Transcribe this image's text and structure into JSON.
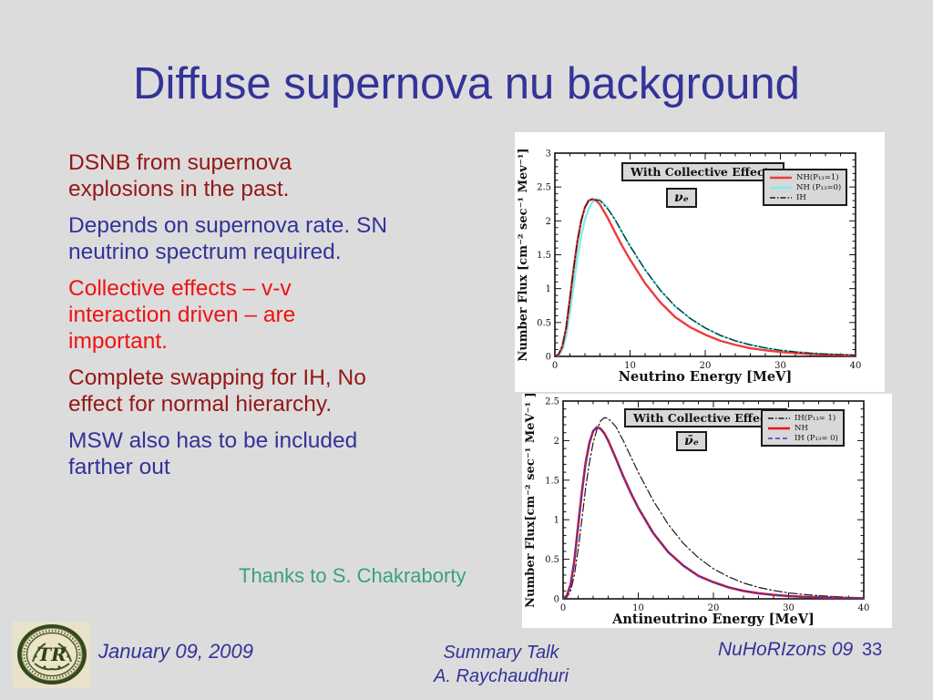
{
  "slide": {
    "title": "Diffuse supernova nu background",
    "background_color": "#dcdcdc",
    "title_color": "#333399"
  },
  "bullets": [
    {
      "text": "DSNB from  supernova\nexplosions in the past.",
      "color": "#951717"
    },
    {
      "text": "Depends on supernova rate. SN\nneutrino spectrum required.",
      "color": "#333399"
    },
    {
      "text": "Collective effects – v-v\ninteraction driven – are\nimportant.",
      "color": "#ee1313"
    },
    {
      "text": "Complete swapping for IH, No\neffect for normal hierarchy.",
      "color": "#951717"
    },
    {
      "text": "MSW also has to be included\nfarther out",
      "color": "#333399"
    }
  ],
  "credit": {
    "text": "Thanks to S. Chakraborty",
    "color": "#3aa376"
  },
  "footer": {
    "date": "January 09, 2009",
    "talk_line1": "Summary Talk",
    "talk_line2": "A. Raychaudhuri",
    "conference": "NuHoRIzons 09",
    "page_number": "33",
    "text_color": "#333399",
    "logo": {
      "monogram": "TR",
      "ring_color": "#35491d",
      "inner_color": "#ece4c6",
      "bg_color": "#e9e2cb"
    }
  },
  "chart_data": [
    {
      "type": "line",
      "title_box": "With Collective Effects",
      "particle_label": "νₑ",
      "xlabel": "Neutrino Energy [MeV]",
      "ylabel": "Number Flux [cm⁻² sec⁻¹ Mev⁻¹]",
      "xlim": [
        0,
        40
      ],
      "ylim": [
        0,
        3
      ],
      "xticks": [
        0,
        10,
        20,
        30,
        40
      ],
      "yticks": [
        0,
        0.5,
        1,
        1.5,
        2,
        2.5,
        3
      ],
      "ytick_labels": [
        "0",
        "0.5",
        "1",
        "1.5",
        "2",
        "2.5",
        "3"
      ],
      "legend_position": "top-right",
      "grid": false,
      "x": [
        0,
        0.5,
        1,
        1.5,
        2,
        2.5,
        3,
        3.5,
        4,
        4.5,
        5,
        5.5,
        6,
        7,
        8,
        9,
        10,
        12,
        14,
        16,
        18,
        20,
        22,
        24,
        26,
        28,
        30,
        32,
        34,
        36,
        38,
        40
      ],
      "series": [
        {
          "name": "NH(P₁₃=1)",
          "color": "#ee3b3b",
          "style": "solid",
          "width": 2.4,
          "y": [
            0,
            0.03,
            0.15,
            0.42,
            0.85,
            1.3,
            1.7,
            2.0,
            2.2,
            2.3,
            2.32,
            2.3,
            2.24,
            2.05,
            1.83,
            1.62,
            1.43,
            1.08,
            0.8,
            0.58,
            0.43,
            0.32,
            0.23,
            0.17,
            0.12,
            0.09,
            0.065,
            0.048,
            0.035,
            0.025,
            0.018,
            0.012
          ]
        },
        {
          "name": "NH (P₁₃=0)",
          "color": "#7deeee",
          "style": "solid",
          "width": 2.4,
          "y": [
            0,
            0.02,
            0.1,
            0.3,
            0.65,
            1.05,
            1.45,
            1.78,
            2.02,
            2.18,
            2.28,
            2.32,
            2.31,
            2.2,
            2.02,
            1.82,
            1.63,
            1.28,
            0.98,
            0.74,
            0.56,
            0.42,
            0.31,
            0.23,
            0.17,
            0.125,
            0.09,
            0.066,
            0.048,
            0.035,
            0.025,
            0.018
          ]
        },
        {
          "name": "IH",
          "color": "#1a1a1a",
          "style": "dashdot",
          "width": 1.2,
          "y": [
            0,
            0.03,
            0.15,
            0.42,
            0.85,
            1.3,
            1.7,
            2.0,
            2.2,
            2.3,
            2.32,
            2.31,
            2.3,
            2.18,
            2.02,
            1.82,
            1.63,
            1.28,
            0.98,
            0.74,
            0.56,
            0.42,
            0.31,
            0.23,
            0.17,
            0.125,
            0.09,
            0.066,
            0.048,
            0.035,
            0.025,
            0.018
          ]
        }
      ],
      "draw_order": [
        1,
        0,
        2
      ]
    },
    {
      "type": "line",
      "title_box": "With Collective Effects",
      "particle_label": "ν̄ₑ",
      "xlabel": "Antineutrino Energy [MeV]",
      "ylabel": "Number Flux[cm⁻² sec⁻¹ MeV⁻¹ ]",
      "xlim": [
        0,
        40
      ],
      "ylim": [
        0,
        2.5
      ],
      "xticks": [
        0,
        10,
        20,
        30,
        40
      ],
      "yticks": [
        0,
        0.5,
        1,
        1.5,
        2,
        2.5
      ],
      "ytick_labels": [
        "0",
        "0.5",
        "1",
        "1.5",
        "2",
        "2.5"
      ],
      "legend_position": "top-right",
      "grid": false,
      "x": [
        0,
        0.5,
        1,
        1.5,
        2,
        2.5,
        3,
        3.5,
        4,
        4.5,
        5,
        5.5,
        6,
        7,
        8,
        9,
        10,
        12,
        14,
        16,
        18,
        20,
        22,
        24,
        26,
        28,
        30,
        32,
        34,
        36,
        38,
        40
      ],
      "series": [
        {
          "name": "IH(P₁₃= 1)",
          "color": "#1a1a1a",
          "style": "dashdot",
          "width": 1.2,
          "y": [
            0,
            0.02,
            0.1,
            0.3,
            0.62,
            1.0,
            1.4,
            1.72,
            1.97,
            2.14,
            2.25,
            2.29,
            2.28,
            2.18,
            2.0,
            1.8,
            1.6,
            1.24,
            0.94,
            0.7,
            0.52,
            0.38,
            0.28,
            0.2,
            0.145,
            0.105,
            0.075,
            0.055,
            0.04,
            0.028,
            0.02,
            0.014
          ]
        },
        {
          "name": "NH",
          "color": "#ee1111",
          "style": "solid",
          "width": 2.6,
          "y": [
            0,
            0.04,
            0.18,
            0.48,
            0.92,
            1.35,
            1.72,
            1.97,
            2.12,
            2.17,
            2.15,
            2.09,
            2.0,
            1.78,
            1.55,
            1.34,
            1.15,
            0.83,
            0.59,
            0.42,
            0.29,
            0.21,
            0.145,
            0.1,
            0.07,
            0.05,
            0.035,
            0.025,
            0.018,
            0.012,
            0.008,
            0.006
          ]
        },
        {
          "name": "IH (P₁₃= 0)",
          "color": "#3a3ac8",
          "style": "dash",
          "width": 1.6,
          "y": [
            0,
            0.04,
            0.18,
            0.48,
            0.92,
            1.35,
            1.72,
            1.97,
            2.12,
            2.17,
            2.15,
            2.09,
            2.0,
            1.78,
            1.55,
            1.34,
            1.15,
            0.83,
            0.59,
            0.42,
            0.29,
            0.21,
            0.145,
            0.1,
            0.07,
            0.05,
            0.035,
            0.025,
            0.018,
            0.012,
            0.008,
            0.006
          ]
        }
      ],
      "draw_order": [
        0,
        1,
        2
      ]
    }
  ]
}
